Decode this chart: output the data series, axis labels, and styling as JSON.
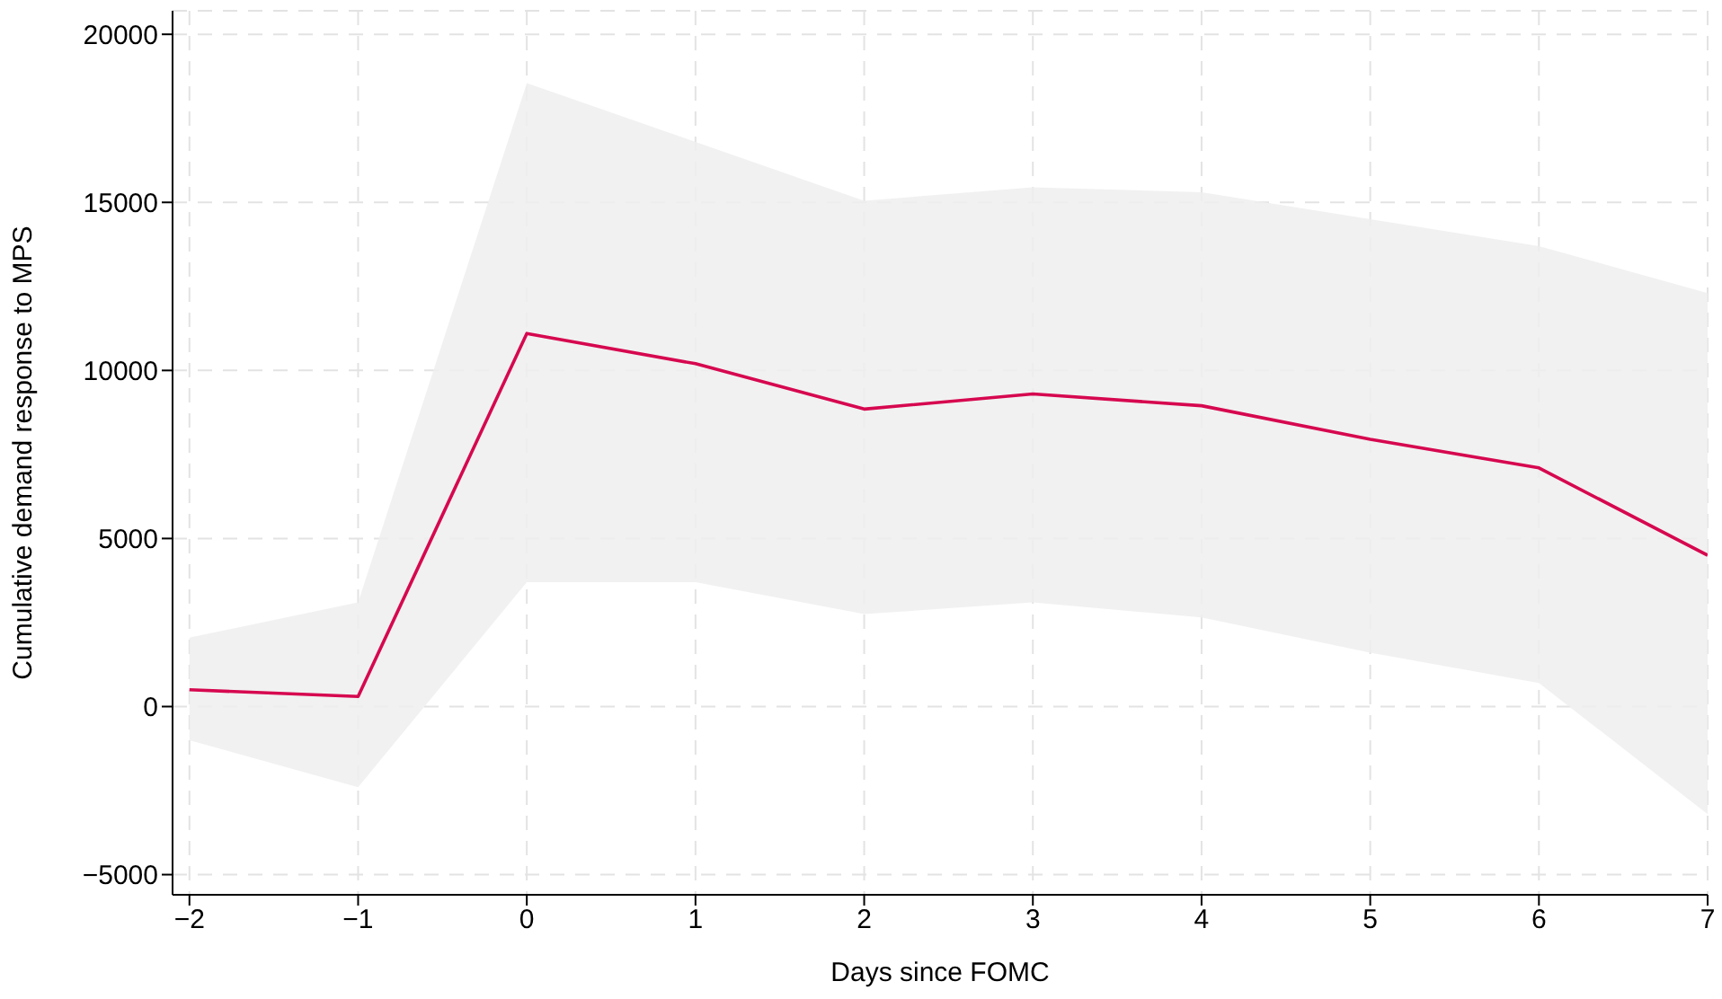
{
  "chart_data": {
    "type": "line",
    "xlabel": "Days since FOMC",
    "ylabel": "Cumulative demand response to MPS",
    "x": [
      -2,
      -1,
      0,
      1,
      2,
      3,
      4,
      5,
      6,
      7
    ],
    "series": [
      {
        "color": "#d6084f",
        "values": [
          500,
          300,
          11100,
          10200,
          8850,
          9300,
          8950,
          7950,
          7100,
          4500
        ],
        "lower": [
          -1000,
          -2400,
          3700,
          3700,
          2750,
          3100,
          2650,
          1600,
          700,
          -3200
        ],
        "upper": [
          2050,
          3100,
          18550,
          16800,
          15050,
          15450,
          15300,
          14500,
          13700,
          12300
        ]
      }
    ],
    "xlim": [
      -2.1,
      7
    ],
    "ylim": [
      -5600,
      20700
    ],
    "xticks": [
      {
        "value": -2,
        "label": "−2"
      },
      {
        "value": -1,
        "label": "−1"
      },
      0,
      1,
      2,
      3,
      4,
      5,
      6,
      7
    ],
    "yticks": [
      {
        "value": -5000,
        "label": "−5000"
      },
      0,
      5000,
      10000,
      15000,
      20000
    ],
    "grid": true,
    "legend": false,
    "marker": "none",
    "line_style": "solid"
  }
}
